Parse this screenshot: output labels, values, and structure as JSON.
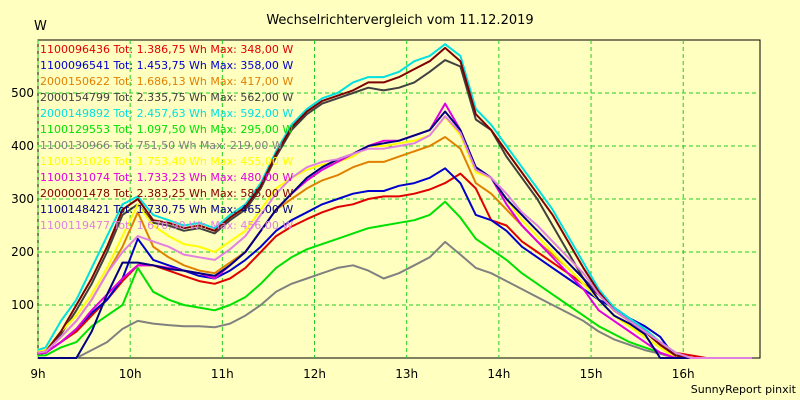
{
  "chart_data": {
    "type": "line",
    "title": "Wechselrichtervergleich vom 11.12.2019",
    "ylabel": "W",
    "footer": "SunnyReport pinxit",
    "ylim": [
      0,
      600
    ],
    "xlim": [
      9.0,
      16.833
    ],
    "yticks": [
      100,
      200,
      300,
      400,
      500
    ],
    "xticks": [
      {
        "label": "9h",
        "value": 9
      },
      {
        "label": "10h",
        "value": 10
      },
      {
        "label": "11h",
        "value": 11
      },
      {
        "label": "12h",
        "value": 12
      },
      {
        "label": "13h",
        "value": 13
      },
      {
        "label": "14h",
        "value": 14
      },
      {
        "label": "15h",
        "value": 15
      },
      {
        "label": "16h",
        "value": 16
      }
    ],
    "x": [
      8.917,
      9.083,
      9.25,
      9.417,
      9.583,
      9.75,
      9.917,
      10.083,
      10.25,
      10.417,
      10.583,
      10.75,
      10.917,
      11.083,
      11.25,
      11.417,
      11.583,
      11.75,
      11.917,
      12.083,
      12.25,
      12.417,
      12.583,
      12.75,
      12.917,
      13.083,
      13.25,
      13.417,
      13.583,
      13.75,
      13.917,
      14.083,
      14.25,
      14.417,
      14.583,
      14.75,
      14.917,
      15.083,
      15.25,
      15.417,
      15.583,
      15.75,
      15.917,
      16.083,
      16.25,
      16.417,
      16.583,
      16.75
    ],
    "series": [
      {
        "name": "1100096436",
        "legend": "1100096436 Tot: 1.386,75 Wh Max: 348,00 W",
        "color": "#e00000",
        "values": [
          8,
          10,
          30,
          50,
          80,
          110,
          145,
          175,
          175,
          165,
          155,
          145,
          140,
          150,
          170,
          200,
          230,
          248,
          262,
          275,
          285,
          290,
          300,
          305,
          305,
          310,
          318,
          330,
          348,
          320,
          260,
          250,
          220,
          200,
          180,
          160,
          140,
          120,
          90,
          70,
          50,
          30,
          10,
          5,
          0,
          0,
          0,
          0
        ]
      },
      {
        "name": "1100096541",
        "legend": "1100096541 Tot: 1.453,75 Wh Max: 358,00 W",
        "color": "#0000cc",
        "values": [
          8,
          10,
          30,
          55,
          85,
          110,
          150,
          225,
          185,
          175,
          165,
          155,
          150,
          165,
          185,
          210,
          240,
          260,
          275,
          290,
          300,
          310,
          315,
          315,
          325,
          330,
          340,
          358,
          330,
          270,
          260,
          240,
          210,
          190,
          170,
          150,
          130,
          110,
          95,
          75,
          60,
          40,
          0,
          0,
          0,
          0,
          0,
          0
        ]
      },
      {
        "name": "2000150622",
        "legend": "2000150622 Tot: 1.686,13 Wh Max: 417,00 W",
        "color": "#e08000",
        "values": [
          10,
          12,
          40,
          70,
          110,
          160,
          210,
          275,
          210,
          190,
          175,
          165,
          160,
          180,
          200,
          240,
          280,
          300,
          320,
          335,
          345,
          360,
          370,
          370,
          380,
          390,
          400,
          417,
          395,
          330,
          310,
          280,
          250,
          220,
          195,
          170,
          140,
          110,
          80,
          60,
          40,
          20,
          0,
          0,
          0,
          0,
          0,
          0
        ]
      },
      {
        "name": "2000154799",
        "legend": "2000154799 Tot: 2.335,75 Wh Max: 562,00 W",
        "color": "#404040",
        "values": [
          8,
          10,
          45,
          90,
          140,
          200,
          270,
          290,
          255,
          250,
          240,
          245,
          235,
          260,
          280,
          320,
          380,
          430,
          460,
          480,
          490,
          500,
          510,
          505,
          510,
          520,
          540,
          562,
          550,
          450,
          430,
          380,
          340,
          300,
          250,
          200,
          150,
          120,
          90,
          70,
          50,
          25,
          5,
          0,
          0,
          0,
          0,
          0
        ]
      },
      {
        "name": "2000149892",
        "legend": "2000149892 Tot: 2.457,63 Wh Max: 592,00 W",
        "color": "#00e0e0",
        "values": [
          15,
          20,
          70,
          110,
          170,
          230,
          290,
          305,
          270,
          260,
          250,
          255,
          245,
          270,
          290,
          330,
          390,
          440,
          470,
          490,
          500,
          520,
          530,
          530,
          540,
          560,
          570,
          592,
          570,
          470,
          440,
          400,
          360,
          320,
          280,
          230,
          180,
          130,
          95,
          75,
          55,
          30,
          10,
          0,
          0,
          0,
          0,
          0
        ]
      },
      {
        "name": "1100129553",
        "legend": "1100129553 Tot: 1.097,50 Wh Max: 295,00 W",
        "color": "#00e000",
        "values": [
          5,
          5,
          20,
          30,
          60,
          80,
          100,
          170,
          125,
          110,
          100,
          95,
          90,
          100,
          115,
          140,
          170,
          190,
          205,
          215,
          225,
          235,
          245,
          250,
          255,
          260,
          270,
          295,
          265,
          225,
          205,
          185,
          160,
          140,
          120,
          100,
          80,
          60,
          45,
          30,
          20,
          10,
          0,
          0,
          0,
          0,
          0,
          0
        ]
      },
      {
        "name": "1100130966",
        "legend": "1100130966 Tot: 751,50 Wh Max: 219,00 W",
        "color": "#808080",
        "values": [
          0,
          0,
          0,
          0,
          15,
          30,
          55,
          70,
          65,
          62,
          60,
          60,
          58,
          65,
          80,
          100,
          125,
          140,
          150,
          160,
          170,
          175,
          165,
          150,
          160,
          175,
          190,
          219,
          195,
          170,
          160,
          145,
          130,
          115,
          100,
          85,
          70,
          50,
          35,
          25,
          15,
          8,
          0,
          0,
          0,
          0,
          0,
          0
        ]
      },
      {
        "name": "1100131026",
        "legend": "1100131026 Tot: 1.753,40 Wh Max: 455,00 W",
        "color": "#ffff00",
        "values": [
          12,
          15,
          50,
          80,
          120,
          170,
          230,
          290,
          250,
          230,
          215,
          210,
          200,
          220,
          240,
          280,
          320,
          340,
          355,
          365,
          370,
          380,
          400,
          400,
          405,
          410,
          420,
          455,
          420,
          350,
          340,
          300,
          260,
          230,
          200,
          170,
          140,
          110,
          80,
          60,
          40,
          20,
          0,
          0,
          0,
          0,
          0,
          0
        ]
      },
      {
        "name": "1100131074",
        "legend": "1100131074 Tot: 1.733,23 Wh Max: 480,00 W",
        "color": "#e000e0",
        "values": [
          8,
          10,
          30,
          55,
          90,
          120,
          150,
          175,
          175,
          170,
          165,
          160,
          150,
          175,
          200,
          240,
          280,
          310,
          335,
          355,
          370,
          385,
          400,
          410,
          410,
          420,
          430,
          480,
          430,
          360,
          340,
          290,
          250,
          220,
          190,
          160,
          130,
          90,
          70,
          50,
          30,
          10,
          0,
          0,
          0,
          0,
          0,
          0
        ]
      },
      {
        "name": "2000001478",
        "legend": "2000001478 Tot: 2.383,25 Wh Max: 585,00 W",
        "color": "#800000",
        "values": [
          10,
          12,
          50,
          100,
          150,
          210,
          280,
          300,
          260,
          255,
          245,
          250,
          240,
          265,
          285,
          325,
          385,
          435,
          465,
          485,
          495,
          505,
          520,
          520,
          530,
          545,
          560,
          585,
          560,
          460,
          430,
          390,
          350,
          310,
          270,
          220,
          170,
          125,
          90,
          70,
          50,
          25,
          5,
          0,
          0,
          0,
          0,
          0
        ]
      },
      {
        "name": "1100148421",
        "legend": "1100148421 Tot: 1.730,75 Wh Max: 465,00 W",
        "color": "#000080",
        "values": [
          0,
          0,
          0,
          0,
          50,
          120,
          180,
          180,
          175,
          168,
          165,
          160,
          155,
          175,
          200,
          240,
          280,
          310,
          340,
          360,
          375,
          385,
          400,
          405,
          410,
          420,
          430,
          465,
          430,
          360,
          340,
          300,
          270,
          240,
          210,
          180,
          150,
          110,
          80,
          65,
          45,
          0,
          0,
          0,
          0,
          0,
          0,
          0
        ]
      },
      {
        "name": "1100119477",
        "legend": "1100119477 Tot: 1.670,90 Wh Max: 456,00 W",
        "color": "#e080e0",
        "values": [
          10,
          12,
          40,
          70,
          110,
          160,
          200,
          230,
          220,
          210,
          195,
          190,
          185,
          205,
          230,
          270,
          310,
          340,
          360,
          370,
          375,
          385,
          395,
          395,
          400,
          405,
          420,
          456,
          425,
          355,
          340,
          310,
          275,
          250,
          220,
          190,
          160,
          120,
          90,
          70,
          50,
          30,
          10,
          0,
          0,
          0,
          0,
          0
        ]
      }
    ]
  }
}
